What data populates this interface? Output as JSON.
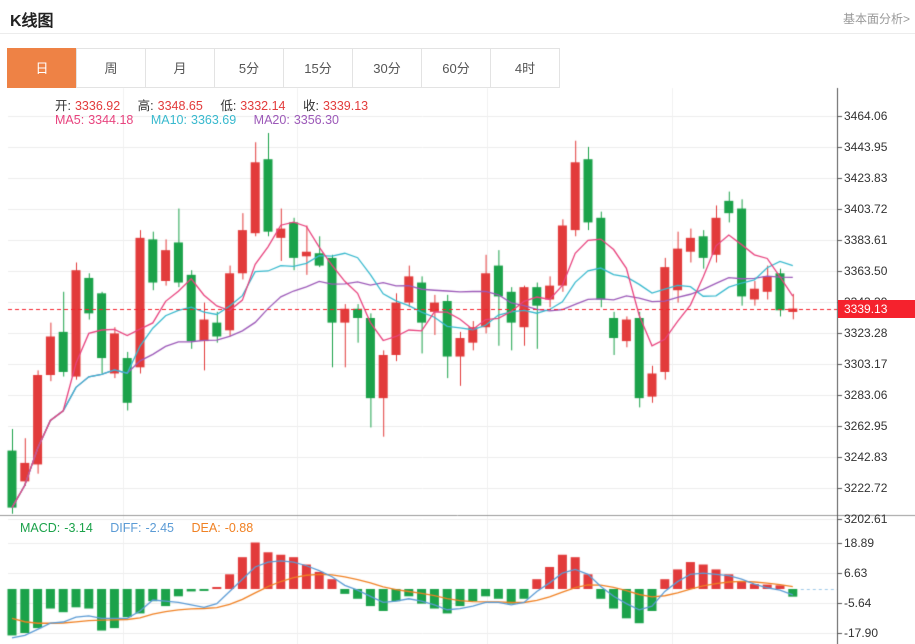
{
  "header": {
    "title": "K线图",
    "link": "基本面分析>"
  },
  "tabs": {
    "items": [
      {
        "label": "日",
        "active": true
      },
      {
        "label": "周",
        "active": false
      },
      {
        "label": "月",
        "active": false
      },
      {
        "label": "5分",
        "active": false
      },
      {
        "label": "15分",
        "active": false
      },
      {
        "label": "30分",
        "active": false
      },
      {
        "label": "60分",
        "active": false
      },
      {
        "label": "4时",
        "active": false
      }
    ]
  },
  "legend": {
    "open_label": "开:",
    "open": "3336.92",
    "high_label": "高:",
    "high": "3348.65",
    "low_label": "低:",
    "low": "3332.14",
    "close_label": "收:",
    "close": "3339.13",
    "ma5_label": "MA5:",
    "ma5": "3344.18",
    "ma10_label": "MA10:",
    "ma10": "3363.69",
    "ma20_label": "MA20:",
    "ma20": "3356.30"
  },
  "macd_legend": {
    "macd_label": "MACD:",
    "macd": "-3.14",
    "diff_label": "DIFF:",
    "diff": "-2.45",
    "dea_label": "DEA:",
    "dea": "-0.88"
  },
  "price_axis": {
    "ticks": [
      "3464.06",
      "3443.95",
      "3423.83",
      "3403.72",
      "3383.61",
      "3363.50",
      "3343.39",
      "3323.28",
      "3303.17",
      "3283.06",
      "3262.95",
      "3242.83",
      "3222.72",
      "3202.61"
    ],
    "current": "3339.13"
  },
  "macd_axis": {
    "ticks": [
      "18.89",
      "6.63",
      "-5.64",
      "-17.90"
    ]
  },
  "colors": {
    "up": "#e23b3b",
    "down": "#1ba24a",
    "ma5": "#e8437e",
    "ma10": "#38b9ce",
    "ma20": "#9c59b8",
    "diff": "#5b9bd5",
    "dea": "#f08123",
    "price_line": "#f5222d",
    "price_label_bg": "#f5222d",
    "tab_active": "#ee8245",
    "grid": "#ededed",
    "vgrid": "#f0f0f0",
    "axis": "#555",
    "divider": "#9a9a9a",
    "zero_ext": "#9ec9e8",
    "label_text": "#333",
    "link": "#999"
  },
  "chart_data": {
    "type": "candlestick+macd",
    "timeframe": "日",
    "ma_periods": [
      5,
      10,
      20
    ],
    "current_price": 3339.13,
    "main_ylim": [
      3205.2,
      3482.2
    ],
    "macd_ylim": [
      -22.5,
      30.25
    ],
    "candles": [
      [
        3247,
        3261,
        3206,
        3210
      ],
      [
        3227,
        3255,
        3224,
        3239
      ],
      [
        3238,
        3299,
        3232,
        3296
      ],
      [
        3296,
        3330,
        3292,
        3321
      ],
      [
        3324,
        3350,
        3295,
        3298
      ],
      [
        3295,
        3369,
        3293,
        3364
      ],
      [
        3359,
        3362,
        3332,
        3336
      ],
      [
        3349,
        3350,
        3297,
        3307
      ],
      [
        3297,
        3327,
        3294,
        3323
      ],
      [
        3307,
        3311,
        3273,
        3278
      ],
      [
        3301,
        3390,
        3297,
        3385
      ],
      [
        3384,
        3389,
        3351,
        3356
      ],
      [
        3357,
        3384,
        3354,
        3377
      ],
      [
        3382,
        3404,
        3353,
        3356
      ],
      [
        3361,
        3364,
        3313,
        3318
      ],
      [
        3318,
        3343,
        3299,
        3332
      ],
      [
        3330,
        3337,
        3317,
        3321
      ],
      [
        3325,
        3367,
        3321,
        3362
      ],
      [
        3362,
        3401,
        3358,
        3390
      ],
      [
        3388,
        3447,
        3386,
        3434
      ],
      [
        3436,
        3453,
        3386,
        3389
      ],
      [
        3385,
        3404,
        3370,
        3391
      ],
      [
        3395,
        3398,
        3364,
        3372
      ],
      [
        3373,
        3393,
        3361,
        3376
      ],
      [
        3375,
        3386,
        3366,
        3367
      ],
      [
        3372,
        3374,
        3301,
        3330
      ],
      [
        3330,
        3342,
        3301,
        3339
      ],
      [
        3339,
        3342,
        3317,
        3333
      ],
      [
        3333,
        3336,
        3262,
        3281
      ],
      [
        3281,
        3312,
        3256,
        3309
      ],
      [
        3309,
        3349,
        3305,
        3343
      ],
      [
        3343,
        3367,
        3340,
        3360
      ],
      [
        3356,
        3360,
        3310,
        3330
      ],
      [
        3337,
        3348,
        3322,
        3343
      ],
      [
        3344,
        3348,
        3294,
        3308
      ],
      [
        3308,
        3324,
        3289,
        3320
      ],
      [
        3317,
        3331,
        3312,
        3327
      ],
      [
        3327,
        3374,
        3323,
        3362
      ],
      [
        3367,
        3377,
        3315,
        3347
      ],
      [
        3350,
        3353,
        3312,
        3330
      ],
      [
        3327,
        3354,
        3315,
        3353
      ],
      [
        3353,
        3356,
        3313,
        3341
      ],
      [
        3345,
        3360,
        3340,
        3354
      ],
      [
        3354,
        3397,
        3350,
        3393
      ],
      [
        3390,
        3448,
        3386,
        3434
      ],
      [
        3436,
        3444,
        3390,
        3395
      ],
      [
        3398,
        3402,
        3340,
        3345
      ],
      [
        3333,
        3337,
        3309,
        3320
      ],
      [
        3318,
        3334,
        3314,
        3332
      ],
      [
        3333,
        3337,
        3275,
        3281
      ],
      [
        3282,
        3302,
        3278,
        3297
      ],
      [
        3298,
        3372,
        3293,
        3366
      ],
      [
        3351,
        3389,
        3343,
        3378
      ],
      [
        3376,
        3391,
        3369,
        3385
      ],
      [
        3386,
        3390,
        3365,
        3372
      ],
      [
        3374,
        3406,
        3369,
        3398
      ],
      [
        3409,
        3415,
        3395,
        3401
      ],
      [
        3404,
        3410,
        3341,
        3347
      ],
      [
        3345,
        3357,
        3341,
        3352
      ],
      [
        3350,
        3367,
        3345,
        3360
      ],
      [
        3362,
        3365,
        3334,
        3338
      ],
      [
        3336.92,
        3348.65,
        3332.14,
        3339.13
      ]
    ],
    "macd": {
      "hist": [
        -19,
        -18,
        -16,
        -8,
        -9.5,
        -7.5,
        -8,
        -17,
        -16,
        -11.5,
        -10,
        -5,
        -7,
        -3,
        -1,
        -0.8,
        0.8,
        6,
        13,
        19,
        15,
        14,
        13,
        10,
        7,
        4,
        -2,
        -4,
        -7,
        -9,
        -5,
        -3,
        -6,
        -8,
        -10,
        -7,
        -5,
        -3,
        -4,
        -6,
        -4,
        4,
        9,
        14,
        13,
        6,
        -4,
        -8,
        -12,
        -14,
        -9,
        4,
        8,
        11,
        10,
        8,
        6,
        3,
        2,
        1.8,
        1.5,
        -3.14
      ],
      "diff": [
        -20,
        -19,
        -16.5,
        -14,
        -13.5,
        -11.5,
        -11,
        -12,
        -12,
        -12,
        -9,
        -4.5,
        -5,
        -5.5,
        -6.5,
        -7.5,
        -6,
        -1,
        4,
        9,
        11,
        11.5,
        11,
        9.5,
        7.5,
        5,
        1.5,
        -0.5,
        -3,
        -5.5,
        -5,
        -4,
        -5,
        -6.5,
        -8.5,
        -8,
        -7,
        -5.5,
        -5.5,
        -6.5,
        -5.5,
        -1,
        2.5,
        6.5,
        8,
        6,
        1,
        -3,
        -6,
        -8.5,
        -7,
        -1,
        3,
        6,
        6.5,
        6,
        5.5,
        4,
        2,
        0.5,
        -0.5,
        -2.45
      ],
      "last_values": {
        "macd": -3.14,
        "diff": -2.45,
        "dea": -0.88
      }
    }
  }
}
